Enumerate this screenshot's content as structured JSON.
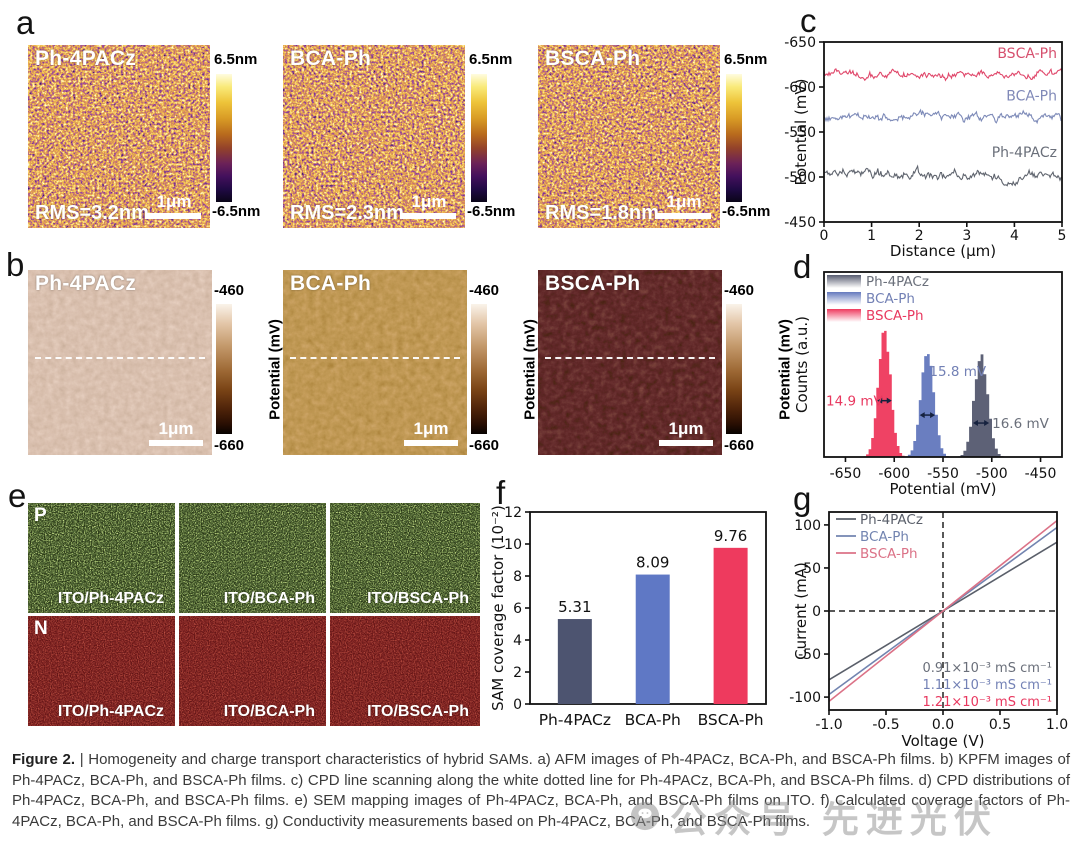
{
  "panels": {
    "a": {
      "label": "a",
      "cbar_top": "6.5nm",
      "cbar_bottom": "-6.5nm",
      "tiles": [
        {
          "name": "Ph-4PACz",
          "rms": "RMS=3.2nm",
          "scale": "1μm"
        },
        {
          "name": "BCA-Ph",
          "rms": "RMS=2.3nm",
          "scale": "1μm"
        },
        {
          "name": "BSCA-Ph",
          "rms": "RMS=1.8nm",
          "scale": "1μm"
        }
      ]
    },
    "b": {
      "label": "b",
      "cbar_top": "-460",
      "cbar_bottom": "-660",
      "cbar_label": "Potential (mV)",
      "tiles": [
        {
          "name": "Ph-4PACz",
          "scale": "1μm"
        },
        {
          "name": "BCA-Ph",
          "scale": "1μm"
        },
        {
          "name": "BSCA-Ph",
          "scale": "1μm"
        }
      ]
    },
    "c": {
      "label": "c"
    },
    "d": {
      "label": "d"
    },
    "e": {
      "label": "e",
      "rows": [
        {
          "tag": "P",
          "cells": [
            "ITO/Ph-4PACz",
            "ITO/BCA-Ph",
            "ITO/BSCA-Ph"
          ]
        },
        {
          "tag": "N",
          "cells": [
            "ITO/Ph-4PACz",
            "ITO/BCA-Ph",
            "ITO/BSCA-Ph"
          ]
        }
      ]
    },
    "f": {
      "label": "f"
    },
    "g": {
      "label": "g"
    }
  },
  "caption": {
    "label": "Figure 2.",
    "text": "| Homogeneity and charge transport characteristics of hybrid SAMs. a) AFM images of Ph-4PACz, BCA-Ph, and BSCA-Ph films. b) KPFM images of Ph-4PACz, BCA-Ph, and BSCA-Ph films. c) CPD line scanning along the white dotted line for Ph-4PACz, BCA-Ph, and BSCA-Ph films. d) CPD distributions of Ph-4PACz, BCA-Ph, and BSCA-Ph films. e) SEM mapping images of Ph-4PACz, BCA-Ph, and BSCA-Ph films on ITO. f) Calculated coverage factors of Ph-4PACz, BCA-Ph, and BSCA-Ph films. g) Conductivity measurements based on Ph-4PACz, BCA-Ph, and BSCA-Ph films."
  },
  "watermark": {
    "text": "公众号 先进光伏"
  },
  "colors": {
    "accent_red": "#e8385f",
    "accent_blue": "#5f78c5",
    "accent_gray": "#4d5470",
    "axis": "#111111"
  },
  "chart_data": [
    {
      "panel": "c",
      "type": "line",
      "xlabel": "Distance (μm)",
      "ylabel": "Potential (mV)",
      "xlim": [
        0,
        5
      ],
      "xticks": [
        0,
        1,
        2,
        3,
        4,
        5
      ],
      "ylim": [
        -650,
        -450
      ],
      "y_axis_reversed": true,
      "yticks": [
        -650,
        -600,
        -550,
        -500,
        -450
      ],
      "grid": false,
      "series": [
        {
          "name": "BSCA-Ph",
          "color": "#e0486b",
          "label_color": "#d6506e",
          "mean_mV": -614,
          "noise_amp_mV": 6,
          "label_y_mV": -632
        },
        {
          "name": "BCA-Ph",
          "color": "#7d8ab8",
          "label_color": "#8089b8",
          "mean_mV": -566,
          "noise_amp_mV": 6,
          "label_y_mV": -585
        },
        {
          "name": "Ph-4PACz",
          "color": "#5f646e",
          "label_color": "#6a6f7a",
          "mean_mV": -503,
          "noise_amp_mV": 7,
          "label_y_mV": -522,
          "dip": {
            "x_um": 3.9,
            "width_um": 0.18,
            "delta_mV": 14
          }
        }
      ]
    },
    {
      "panel": "d",
      "type": "histogram",
      "xlabel": "Potential (mV)",
      "ylabel": "Counts (a.u.)",
      "xlim": [
        -672,
        -428
      ],
      "xticks": [
        -650,
        -600,
        -550,
        -500,
        -450
      ],
      "legend_position": "top-left",
      "series": [
        {
          "name": "Ph-4PACz",
          "color": "#565b70",
          "text_color": "#6a6f7a",
          "center_mV": -511,
          "fwhm_mV": 16.6,
          "fwhm_label": "16.6 mV",
          "rel_height": 0.78
        },
        {
          "name": "BCA-Ph",
          "color": "#6479bd",
          "text_color": "#7381b5",
          "center_mV": -566,
          "fwhm_mV": 15.8,
          "fwhm_label": "15.8 mV",
          "rel_height": 0.84
        },
        {
          "name": "BSCA-Ph",
          "color": "#ee3a5e",
          "text_color": "#e8385f",
          "center_mV": -610,
          "fwhm_mV": 14.9,
          "fwhm_label": "14.9 mV",
          "rel_height": 1.0
        }
      ]
    },
    {
      "panel": "f",
      "type": "bar",
      "ylabel": "SAM coverage factor (10⁻²)",
      "ylim": [
        0,
        12
      ],
      "yticks": [
        0,
        2,
        4,
        6,
        8,
        10,
        12
      ],
      "categories": [
        "Ph-4PACz",
        "BCA-Ph",
        "BSCA-Ph"
      ],
      "values": [
        5.31,
        8.09,
        9.76
      ],
      "value_labels": [
        "5.31",
        "8.09",
        "9.76"
      ],
      "bar_colors": [
        "#4d5470",
        "#5f78c5",
        "#ee3a5e"
      ]
    },
    {
      "panel": "g",
      "type": "line",
      "xlabel": "Voltage (V)",
      "ylabel": "Current (mA)",
      "xlim": [
        -1,
        1
      ],
      "xticks": [
        -1,
        -0.5,
        0,
        0.5,
        1
      ],
      "xtick_labels": [
        "-1.0",
        "-0.5",
        "0.0",
        "0.5",
        "1.0"
      ],
      "ylim": [
        -115,
        115
      ],
      "yticks": [
        -100,
        -50,
        0,
        50,
        100
      ],
      "zero_crosshair_dashed": true,
      "series": [
        {
          "name": "Ph-4PACz",
          "color": "#5a5f6a",
          "slope_mA_per_V": 80,
          "conductivity_label": "0.91×10⁻³ mS cm⁻¹",
          "label_color": "#6a6f7a"
        },
        {
          "name": "BCA-Ph",
          "color": "#7284b0",
          "slope_mA_per_V": 97,
          "conductivity_label": "1.11×10⁻³ mS cm⁻¹",
          "label_color": "#7381b5"
        },
        {
          "name": "BSCA-Ph",
          "color": "#db7287",
          "slope_mA_per_V": 105,
          "conductivity_label": "1.21×10⁻³ mS cm⁻¹",
          "label_color": "#e8385f"
        }
      ]
    }
  ]
}
